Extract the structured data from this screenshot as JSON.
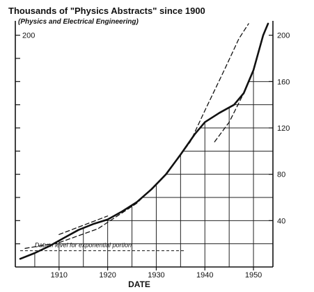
{
  "chart_data": {
    "type": "line",
    "title": "Thousands of \"Physics Abstracts\" since 1900",
    "subtitle": "(Physics and Electrical Engineering)",
    "xlabel": "DATE",
    "ylabel": "",
    "xlim": [
      1901,
      1954
    ],
    "ylim": [
      0,
      210
    ],
    "x_tick_labels": [
      "1910",
      "1920",
      "1930",
      "1940",
      "1950"
    ],
    "x_tick_values": [
      1910,
      1920,
      1930,
      1940,
      1950
    ],
    "y_tick_labels_right": [
      "40",
      "80",
      "120",
      "160",
      "200"
    ],
    "y_tick_values_right": [
      40,
      80,
      120,
      160,
      200
    ],
    "y_tick_label_left": "200",
    "annotation": "Datum level for exponential portion",
    "datum_level": 14,
    "grid": "partial (below main curve)",
    "series": [
      {
        "style": "solid",
        "x": [
          1902,
          1905,
          1908,
          1911,
          1914,
          1917,
          1920,
          1923,
          1926,
          1929,
          1932,
          1935,
          1938,
          1940,
          1943,
          1946,
          1948,
          1950,
          1952,
          1953
        ],
        "y": [
          7,
          12,
          18,
          25,
          32,
          37,
          41,
          48,
          56,
          67,
          80,
          97,
          115,
          125,
          133,
          140,
          150,
          170,
          200,
          210
        ]
      },
      {
        "style": "dashed",
        "x": [
          1903,
          1910,
          1918,
          1926,
          1932,
          1937,
          1940,
          1944,
          1947,
          1949
        ],
        "y": [
          16,
          21,
          33,
          55,
          80,
          108,
          135,
          170,
          197,
          210
        ]
      },
      {
        "style": "dashed",
        "x": [
          1910,
          1915,
          1920
        ],
        "y": [
          28,
          36,
          44
        ]
      },
      {
        "style": "dashed",
        "x": [
          1942,
          1945,
          1948
        ],
        "y": [
          108,
          125,
          150
        ]
      }
    ]
  }
}
